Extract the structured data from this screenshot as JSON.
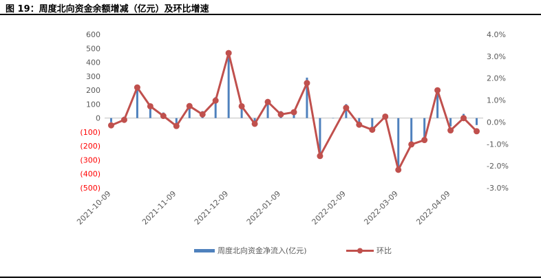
{
  "title": "图 19：周度北向资金余额增减（亿元）及环比增速",
  "chart_data": {
    "type": "bar+line",
    "x_tick_labels": [
      "2021-10-09",
      "2021-11-09",
      "2021-12-09",
      "2022-01-09",
      "2022-02-09",
      "2022-03-09",
      "2022-04-09"
    ],
    "left_axis": {
      "ticks": [
        "600",
        "500",
        "400",
        "300",
        "200",
        "100",
        "0",
        "(100)",
        "(200)",
        "(300)",
        "(400)",
        "(500)"
      ],
      "ylim": [
        -500,
        600
      ]
    },
    "right_axis": {
      "ticks": [
        "4.0%",
        "3.0%",
        "2.0%",
        "1.0%",
        "0.0%",
        "-1.0%",
        "-2.0%",
        "-3.0%"
      ],
      "ylim": [
        -3.0,
        4.0
      ]
    },
    "series": [
      {
        "name": "周度北向资金净流入(亿元)",
        "type": "bar",
        "color": "#4f81bd",
        "values": [
          -30,
          10,
          220,
          90,
          40,
          -40,
          90,
          50,
          150,
          470,
          90,
          -30,
          130,
          50,
          50,
          290,
          -270,
          0,
          100,
          -30,
          -70,
          30,
          -370,
          -180,
          -160,
          220,
          -60,
          30,
          -50
        ]
      },
      {
        "name": "环比",
        "type": "line",
        "color": "#c0504d",
        "values": [
          -0.15,
          0.1,
          1.58,
          0.72,
          0.28,
          -0.18,
          0.73,
          0.35,
          0.98,
          3.15,
          0.72,
          -0.08,
          0.92,
          0.35,
          0.45,
          1.78,
          -1.55,
          null,
          0.65,
          -0.12,
          -0.35,
          0.25,
          -2.18,
          -1.02,
          -0.82,
          1.45,
          -0.38,
          0.18,
          -0.42
        ]
      }
    ]
  }
}
